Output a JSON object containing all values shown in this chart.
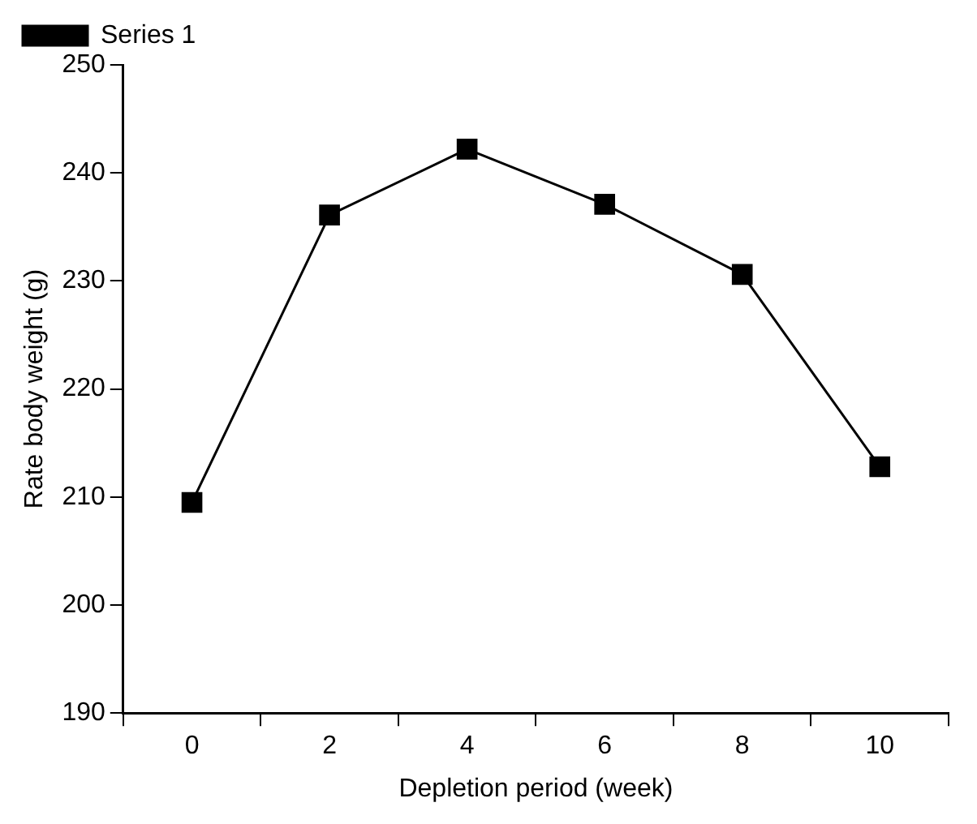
{
  "chart_data": {
    "type": "line",
    "xlabel": "Depletion period (week)",
    "ylabel": "Rate body weight (g)",
    "categories": [
      "0",
      "2",
      "4",
      "6",
      "8",
      "10"
    ],
    "series": [
      {
        "name": "Series 1",
        "color": "#000000",
        "values": [
          209.5,
          236.1,
          242.2,
          237.1,
          230.6,
          212.8
        ]
      }
    ],
    "ylim": [
      190,
      250
    ],
    "yticks": [
      190,
      200,
      210,
      220,
      230,
      240,
      250
    ],
    "grid": false,
    "legend": "top left",
    "marker": "square",
    "line_style": "solid"
  }
}
